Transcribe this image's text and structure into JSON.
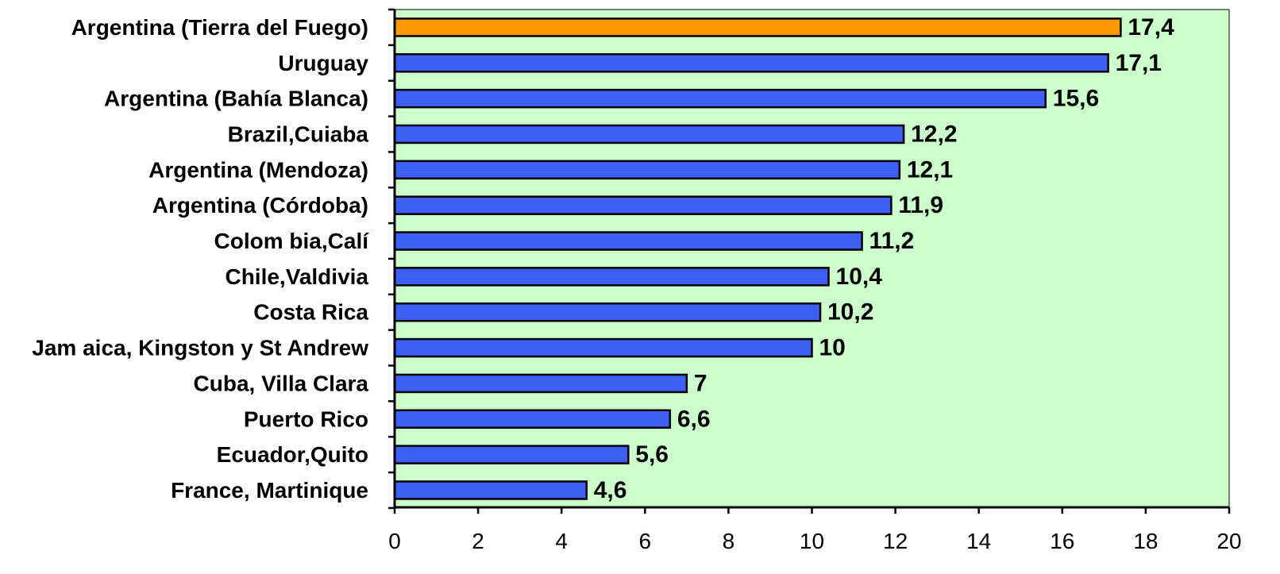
{
  "chart_data": {
    "type": "bar",
    "orientation": "horizontal",
    "title": "",
    "xlabel": "",
    "ylabel": "",
    "xlim": [
      0,
      20
    ],
    "x_ticks": [
      0,
      2,
      4,
      6,
      8,
      10,
      12,
      14,
      16,
      18,
      20
    ],
    "grid": false,
    "legend": "none",
    "categories": [
      "Argentina (Tierra del Fuego)",
      "Uruguay",
      "Argentina (Bahía Blanca)",
      "Brazil,Cuiaba",
      "Argentina (Mendoza)",
      "Argentina (Córdoba)",
      "Colom bia,Calí",
      "Chile,Valdivia",
      "Costa Rica",
      "Jam aica, Kingston y St Andrew",
      "Cuba, Villa Clara",
      "Puerto  Rico",
      "Ecuador,Quito",
      "France, Martinique"
    ],
    "values": [
      17.4,
      17.1,
      15.6,
      12.2,
      12.1,
      11.9,
      11.2,
      10.4,
      10.2,
      10,
      7,
      6.6,
      5.6,
      4.6
    ],
    "value_labels": [
      "17,4",
      "17,1",
      "15,6",
      "12,2",
      "12,1",
      "11,9",
      "11,2",
      "10,4",
      "10,2",
      "10",
      "7",
      "6,6",
      "5,6",
      "4,6"
    ],
    "highlight_index": 0,
    "colors": {
      "bar": "#3e5ff3",
      "highlight": "#ff9900",
      "plot_background": "#ccffcc",
      "axis": "#000000"
    }
  }
}
